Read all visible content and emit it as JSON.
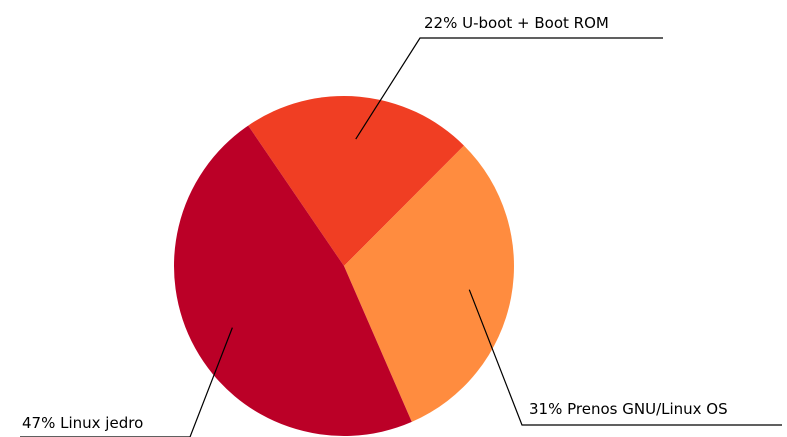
{
  "chart_data": {
    "type": "pie",
    "categories": [
      "U-boot + Boot ROM",
      "Prenos GNU/Linux OS",
      "Linux jedro"
    ],
    "values": [
      22,
      31,
      47
    ],
    "value_labels": [
      "22%",
      "31%",
      "47%"
    ],
    "colors": [
      "#f03e23",
      "#ff8c3f",
      "#bb0027"
    ]
  }
}
